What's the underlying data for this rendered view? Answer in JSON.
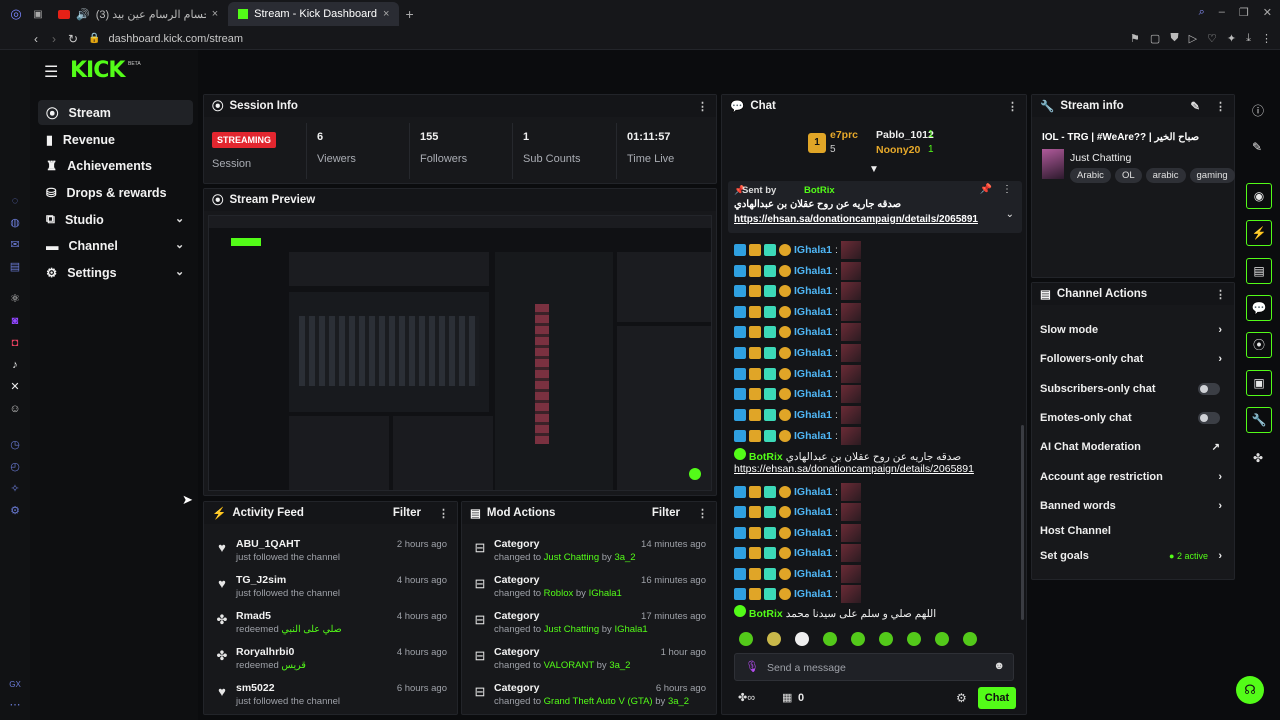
{
  "browser": {
    "tabs": [
      {
        "label": "(3) حسام الرسام عين بيد..."
      },
      {
        "label": "Stream - Kick Dashboard"
      }
    ],
    "url": "dashboard.kick.com/stream"
  },
  "brand": {
    "logo": "KICK",
    "beta": "BETA",
    "accent": "#53fc18"
  },
  "sidebar": {
    "items": [
      {
        "label": "Stream",
        "icon": "stream-icon"
      },
      {
        "label": "Revenue",
        "icon": "revenue-icon"
      },
      {
        "label": "Achievements",
        "icon": "trophy-icon"
      },
      {
        "label": "Drops & rewards",
        "icon": "gift-icon"
      },
      {
        "label": "Studio",
        "icon": "studio-icon"
      },
      {
        "label": "Channel",
        "icon": "channel-icon"
      },
      {
        "label": "Settings",
        "icon": "gear-icon"
      }
    ]
  },
  "session": {
    "title": "Session Info",
    "status": "STREAMING",
    "status_label": "Session",
    "stats": [
      {
        "value": "6",
        "label": "Viewers"
      },
      {
        "value": "155",
        "label": "Followers"
      },
      {
        "value": "1",
        "label": "Sub Counts"
      },
      {
        "value": "01:11:57",
        "label": "Time Live"
      }
    ]
  },
  "preview": {
    "title": "Stream Preview"
  },
  "activity": {
    "title": "Activity Feed",
    "filter": "Filter",
    "items": [
      {
        "name": "ABU_1QAHT",
        "action": "just followed the channel",
        "extra": "",
        "time": "2 hours ago",
        "icon": "heart-icon"
      },
      {
        "name": "TG_J2sim",
        "action": "just followed the channel",
        "extra": "",
        "time": "4 hours ago",
        "icon": "heart-icon"
      },
      {
        "name": "Rmad5",
        "action": "redeemed",
        "extra": "صلي على النبي",
        "time": "4 hours ago",
        "icon": "reward-icon"
      },
      {
        "name": "Roryalhrbi0",
        "action": "redeemed",
        "extra": "قريس",
        "time": "4 hours ago",
        "icon": "reward-icon"
      },
      {
        "name": "sm5022",
        "action": "just followed the channel",
        "extra": "",
        "time": "6 hours ago",
        "icon": "heart-icon"
      }
    ]
  },
  "mod": {
    "title": "Mod Actions",
    "filter": "Filter",
    "items": [
      {
        "title": "Category",
        "prefix": "changed to",
        "value": "Just Chatting",
        "by": "by",
        "user": "3a_2",
        "time": "14 minutes ago"
      },
      {
        "title": "Category",
        "prefix": "changed to",
        "value": "Roblox",
        "by": "by",
        "user": "IGhala1",
        "time": "16 minutes ago"
      },
      {
        "title": "Category",
        "prefix": "changed to",
        "value": "Just Chatting",
        "by": "by",
        "user": "IGhala1",
        "time": "17 minutes ago"
      },
      {
        "title": "Category",
        "prefix": "changed to",
        "value": "VALORANT",
        "by": "by",
        "user": "3a_2",
        "time": "1 hour ago"
      },
      {
        "title": "Category",
        "prefix": "changed to",
        "value": "Grand Theft Auto V (GTA)",
        "by": "by",
        "user": "3a_2",
        "time": "6 hours ago"
      }
    ]
  },
  "chat": {
    "title": "Chat",
    "top": [
      {
        "name": "e7prc",
        "count": "5",
        "rank": "1"
      },
      {
        "name": "Pablo_1012",
        "count": "1"
      },
      {
        "name": "Noony20",
        "count": "1"
      }
    ],
    "pinned": {
      "label": "Sent by",
      "user": "BotRix",
      "text": "صدقه جاريه عن روح عقلان بن عبدالهادي",
      "link": "https://ehsan.sa/donationcampaign/details/2065891"
    },
    "user": "IGhala1",
    "colon": ":",
    "bot": {
      "user": "BotRix",
      "text": "صدقه جاريه عن روح عقلان بن عبدالهادي",
      "link": "https://ehsan.sa/donationcampaign/details/2065891",
      "text2": "اللهم صلي و سلم على سيدنا محمد"
    },
    "placeholder": "Send a message",
    "points": "0",
    "send": "Chat"
  },
  "stream_info": {
    "title": "Stream info",
    "stream_title": "IOL - TRG | #WeAre?? | صباح الخير",
    "category": "Just Chatting",
    "tags": [
      "Arabic",
      "OL",
      "arabic",
      "gaming"
    ]
  },
  "channel_actions": {
    "title": "Channel Actions",
    "items": [
      {
        "label": "Slow mode",
        "control": "chevron"
      },
      {
        "label": "Followers-only chat",
        "control": "chevron"
      },
      {
        "label": "Subscribers-only chat",
        "control": "toggle"
      },
      {
        "label": "Emotes-only chat",
        "control": "toggle"
      },
      {
        "label": "AI Chat Moderation",
        "control": "external"
      },
      {
        "label": "Account age restriction",
        "control": "chevron"
      },
      {
        "label": "Banned words",
        "control": "chevron"
      },
      {
        "label": "Host Channel",
        "control": "none"
      },
      {
        "label": "Set goals",
        "control": "chevron"
      }
    ],
    "goals_status": "2 active"
  }
}
